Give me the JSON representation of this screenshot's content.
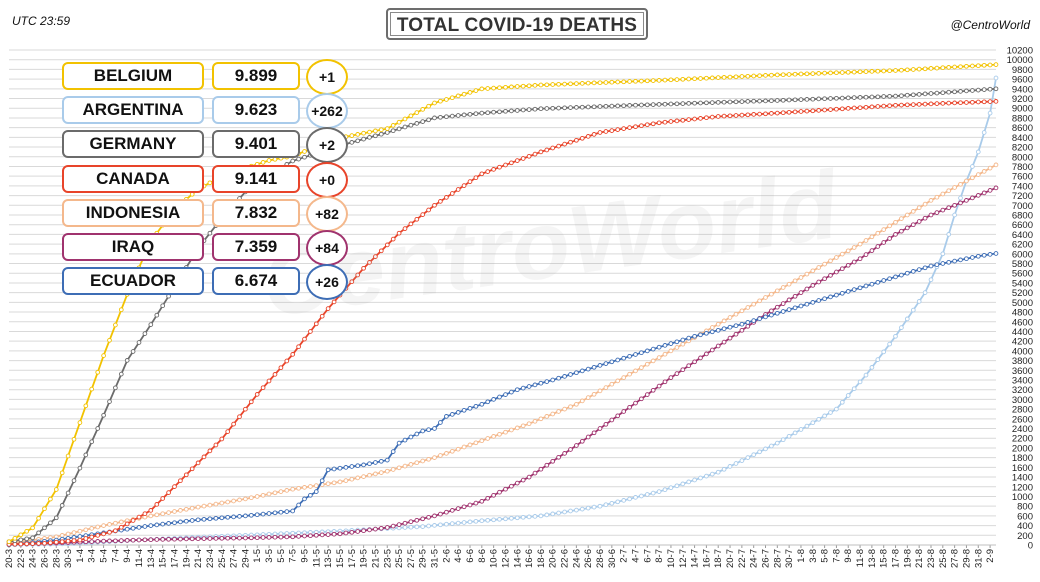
{
  "header": {
    "time": "UTC 23:59",
    "title": "TOTAL COVID-19 DEATHS",
    "handle": "@CentroWorld",
    "watermark": "CentroWorld"
  },
  "legend": [
    {
      "name": "BELGIUM",
      "value": "9.899",
      "increase": "+1",
      "color": "#F2C200"
    },
    {
      "name": "ARGENTINA",
      "value": "9.623",
      "increase": "+262",
      "color": "#A9CBEA"
    },
    {
      "name": "GERMANY",
      "value": "9.401",
      "increase": "+2",
      "color": "#6B6B6B"
    },
    {
      "name": "CANADA",
      "value": "9.141",
      "increase": "+0",
      "color": "#E8442A"
    },
    {
      "name": "INDONESIA",
      "value": "7.832",
      "increase": "+82",
      "color": "#F4B88C"
    },
    {
      "name": "IRAQ",
      "value": "7.359",
      "increase": "+84",
      "color": "#A0336E"
    },
    {
      "name": "ECUADOR",
      "value": "6.674",
      "increase": "+26",
      "color": "#3D6DB5"
    }
  ],
  "chart_data": {
    "type": "line",
    "title": "TOTAL COVID-19 DEATHS",
    "grid": true,
    "ylim": [
      0,
      10200
    ],
    "ytick_step": 200,
    "x_labels": [
      "20-3",
      "22-3",
      "24-3",
      "26-3",
      "28-3",
      "30-3",
      "1-4",
      "3-4",
      "5-4",
      "7-4",
      "9-4",
      "11-4",
      "13-4",
      "15-4",
      "17-4",
      "19-4",
      "21-4",
      "23-4",
      "25-4",
      "27-4",
      "29-4",
      "1-5",
      "3-5",
      "5-5",
      "7-5",
      "9-5",
      "11-5",
      "13-5",
      "15-5",
      "17-5",
      "19-5",
      "21-5",
      "23-5",
      "25-5",
      "27-5",
      "29-5",
      "31-5",
      "2-6",
      "4-6",
      "6-6",
      "8-6",
      "10-6",
      "12-6",
      "14-6",
      "16-6",
      "18-6",
      "20-6",
      "22-6",
      "24-6",
      "26-6",
      "28-6",
      "30-6",
      "2-7",
      "4-7",
      "6-7",
      "8-7",
      "10-7",
      "12-7",
      "14-7",
      "16-7",
      "18-7",
      "20-7",
      "22-7",
      "24-7",
      "26-7",
      "28-7",
      "30-7",
      "1-8",
      "3-8",
      "5-8",
      "7-8",
      "9-8",
      "11-8",
      "13-8",
      "15-8",
      "17-8",
      "19-8",
      "21-8",
      "23-8",
      "25-8",
      "27-8",
      "29-8",
      "31-8",
      "2-9"
    ],
    "x_unit_days": 2,
    "series": [
      {
        "name": "BELGIUM",
        "color": "#F2C200",
        "points": [
          [
            0,
            67
          ],
          [
            4,
            353
          ],
          [
            8,
            1143
          ],
          [
            12,
            2523
          ],
          [
            16,
            3903
          ],
          [
            20,
            5163
          ],
          [
            24,
            6262
          ],
          [
            28,
            6917
          ],
          [
            32,
            7331
          ],
          [
            36,
            7594
          ],
          [
            40,
            7765
          ],
          [
            44,
            7924
          ],
          [
            48,
            8016
          ],
          [
            56,
            8389
          ],
          [
            64,
            8581
          ],
          [
            72,
            9108
          ],
          [
            80,
            9399
          ],
          [
            90,
            9479
          ],
          [
            110,
            9574
          ],
          [
            130,
            9687
          ],
          [
            150,
            9777
          ],
          [
            167,
            9899
          ]
        ]
      },
      {
        "name": "ARGENTINA",
        "color": "#A9CBEA",
        "points": [
          [
            0,
            3
          ],
          [
            10,
            24
          ],
          [
            20,
            90
          ],
          [
            30,
            150
          ],
          [
            40,
            200
          ],
          [
            55,
            280
          ],
          [
            70,
            380
          ],
          [
            80,
            500
          ],
          [
            90,
            600
          ],
          [
            100,
            800
          ],
          [
            110,
            1100
          ],
          [
            120,
            1500
          ],
          [
            130,
            2100
          ],
          [
            140,
            2800
          ],
          [
            145,
            3500
          ],
          [
            150,
            4300
          ],
          [
            155,
            5200
          ],
          [
            158,
            6000
          ],
          [
            160,
            6800
          ],
          [
            162,
            7500
          ],
          [
            164,
            8100
          ],
          [
            166,
            8900
          ],
          [
            167,
            9623
          ]
        ]
      },
      {
        "name": "GERMANY",
        "color": "#6B6B6B",
        "points": [
          [
            0,
            67
          ],
          [
            4,
            149
          ],
          [
            8,
            560
          ],
          [
            12,
            1584
          ],
          [
            16,
            2673
          ],
          [
            20,
            3804
          ],
          [
            24,
            4541
          ],
          [
            28,
            5321
          ],
          [
            32,
            6115
          ],
          [
            36,
            6736
          ],
          [
            40,
            7275
          ],
          [
            44,
            7634
          ],
          [
            48,
            7913
          ],
          [
            56,
            8228
          ],
          [
            64,
            8500
          ],
          [
            72,
            8800
          ],
          [
            80,
            8900
          ],
          [
            90,
            8990
          ],
          [
            110,
            9080
          ],
          [
            130,
            9160
          ],
          [
            150,
            9250
          ],
          [
            167,
            9401
          ]
        ]
      },
      {
        "name": "CANADA",
        "color": "#E8442A",
        "points": [
          [
            0,
            12
          ],
          [
            6,
            36
          ],
          [
            12,
            101
          ],
          [
            18,
            294
          ],
          [
            24,
            714
          ],
          [
            30,
            1447
          ],
          [
            36,
            2184
          ],
          [
            42,
            3104
          ],
          [
            48,
            3928
          ],
          [
            54,
            4872
          ],
          [
            60,
            5702
          ],
          [
            66,
            6424
          ],
          [
            72,
            7000
          ],
          [
            80,
            7650
          ],
          [
            90,
            8100
          ],
          [
            100,
            8500
          ],
          [
            110,
            8700
          ],
          [
            120,
            8830
          ],
          [
            130,
            8900
          ],
          [
            140,
            8980
          ],
          [
            150,
            9060
          ],
          [
            160,
            9110
          ],
          [
            167,
            9141
          ]
        ]
      },
      {
        "name": "INDONESIA",
        "color": "#F4B88C",
        "points": [
          [
            0,
            32
          ],
          [
            8,
            170
          ],
          [
            16,
            400
          ],
          [
            24,
            600
          ],
          [
            32,
            780
          ],
          [
            40,
            950
          ],
          [
            48,
            1150
          ],
          [
            56,
            1300
          ],
          [
            64,
            1520
          ],
          [
            72,
            1800
          ],
          [
            80,
            2150
          ],
          [
            88,
            2500
          ],
          [
            96,
            2900
          ],
          [
            104,
            3450
          ],
          [
            112,
            4000
          ],
          [
            120,
            4550
          ],
          [
            128,
            5100
          ],
          [
            136,
            5650
          ],
          [
            144,
            6200
          ],
          [
            150,
            6650
          ],
          [
            156,
            7100
          ],
          [
            162,
            7500
          ],
          [
            167,
            7832
          ]
        ]
      },
      {
        "name": "IRAQ",
        "color": "#A0336E",
        "points": [
          [
            0,
            12
          ],
          [
            8,
            40
          ],
          [
            16,
            80
          ],
          [
            24,
            110
          ],
          [
            32,
            130
          ],
          [
            40,
            145
          ],
          [
            48,
            170
          ],
          [
            56,
            230
          ],
          [
            64,
            360
          ],
          [
            72,
            600
          ],
          [
            80,
            900
          ],
          [
            88,
            1400
          ],
          [
            96,
            2050
          ],
          [
            104,
            2750
          ],
          [
            112,
            3450
          ],
          [
            120,
            4100
          ],
          [
            128,
            4750
          ],
          [
            136,
            5350
          ],
          [
            144,
            5900
          ],
          [
            150,
            6400
          ],
          [
            156,
            6800
          ],
          [
            162,
            7100
          ],
          [
            167,
            7359
          ]
        ]
      },
      {
        "name": "ECUADOR",
        "color": "#3D6DB5",
        "points": [
          [
            0,
            5
          ],
          [
            8,
            100
          ],
          [
            16,
            250
          ],
          [
            24,
            400
          ],
          [
            32,
            520
          ],
          [
            40,
            600
          ],
          [
            48,
            700
          ],
          [
            50,
            950
          ],
          [
            52,
            1100
          ],
          [
            54,
            1550
          ],
          [
            60,
            1650
          ],
          [
            64,
            1750
          ],
          [
            66,
            2100
          ],
          [
            70,
            2350
          ],
          [
            72,
            2400
          ],
          [
            74,
            2650
          ],
          [
            80,
            2900
          ],
          [
            86,
            3200
          ],
          [
            92,
            3400
          ],
          [
            100,
            3700
          ],
          [
            108,
            4000
          ],
          [
            116,
            4300
          ],
          [
            124,
            4550
          ],
          [
            132,
            4850
          ],
          [
            140,
            5150
          ],
          [
            148,
            5450
          ],
          [
            156,
            5750
          ],
          [
            164,
            5950
          ],
          [
            172,
            6100
          ],
          [
            180,
            6350
          ],
          [
            190,
            6450
          ],
          [
            200,
            6674
          ]
        ]
      }
    ]
  }
}
